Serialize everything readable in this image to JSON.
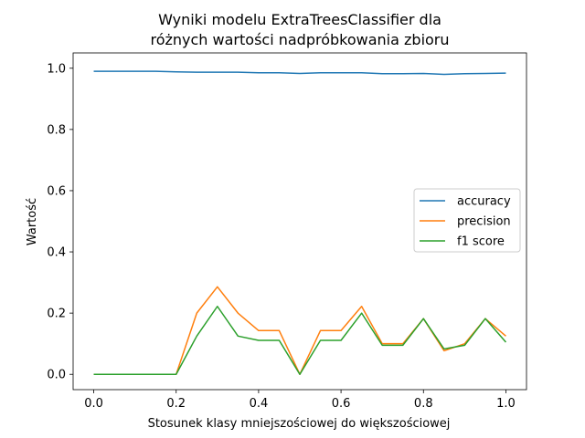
{
  "chart_data": {
    "type": "line",
    "title_line1": "Wyniki modelu ExtraTreesClassifier dla",
    "title_line2": "różnych wartości nadpróbkowania zbioru",
    "xlabel": "Stosunek klasy mniejszościowej do większościowej",
    "ylabel": "Wartość",
    "xlim": [
      -0.05,
      1.05
    ],
    "ylim": [
      -0.05,
      1.05
    ],
    "x": [
      0.0,
      0.05,
      0.1,
      0.15,
      0.2,
      0.25,
      0.3,
      0.35,
      0.4,
      0.45,
      0.5,
      0.55,
      0.6,
      0.65,
      0.7,
      0.75,
      0.8,
      0.85,
      0.9,
      0.95,
      1.0
    ],
    "xticks": [
      "0.0",
      "0.2",
      "0.4",
      "0.6",
      "0.8",
      "1.0"
    ],
    "yticks": [
      "0.0",
      "0.2",
      "0.4",
      "0.6",
      "0.8",
      "1.0"
    ],
    "grid": false,
    "legend_position": "center-right",
    "series": [
      {
        "name": "accuracy",
        "color": "#1f77b4",
        "values": [
          0.99,
          0.99,
          0.99,
          0.99,
          0.988,
          0.987,
          0.987,
          0.987,
          0.985,
          0.985,
          0.983,
          0.985,
          0.985,
          0.985,
          0.982,
          0.982,
          0.983,
          0.98,
          0.982,
          0.983,
          0.984
        ]
      },
      {
        "name": "precision",
        "color": "#ff7f0e",
        "values": [
          0.0,
          0.0,
          0.0,
          0.0,
          0.0,
          0.2,
          0.286,
          0.2,
          0.143,
          0.143,
          0.0,
          0.143,
          0.143,
          0.222,
          0.1,
          0.1,
          0.182,
          0.077,
          0.1,
          0.182,
          0.125
        ]
      },
      {
        "name": "f1 score",
        "color": "#2ca02c",
        "values": [
          0.0,
          0.0,
          0.0,
          0.0,
          0.0,
          0.125,
          0.222,
          0.125,
          0.111,
          0.111,
          0.0,
          0.111,
          0.111,
          0.2,
          0.095,
          0.095,
          0.182,
          0.083,
          0.095,
          0.182,
          0.105
        ]
      }
    ]
  }
}
